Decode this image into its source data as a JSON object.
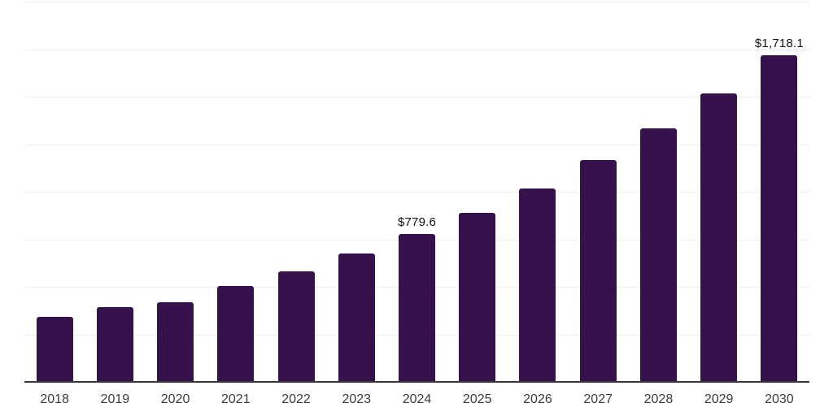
{
  "chart_data": {
    "type": "bar",
    "title": "",
    "xlabel": "",
    "ylabel": "",
    "categories": [
      "2018",
      "2019",
      "2020",
      "2021",
      "2022",
      "2023",
      "2024",
      "2025",
      "2026",
      "2027",
      "2028",
      "2029",
      "2030"
    ],
    "values": [
      341,
      392,
      417,
      504,
      582,
      674,
      779.6,
      890,
      1019,
      1168,
      1332,
      1516,
      1718.1
    ],
    "value_labels": {
      "2024": "$779.6",
      "2030": "$1,718.1"
    },
    "ylim": [
      0,
      2000
    ],
    "gridline_step": 250,
    "grid": "horizontal-only, no y-axis tick labels",
    "legend": "none",
    "colors": {
      "bar": "#35124B",
      "axis_line": "#37373a",
      "gridline": "#f0f0f0",
      "tick_label": "#3c3c3c",
      "value_label": "#111111",
      "background": "#ffffff"
    }
  }
}
